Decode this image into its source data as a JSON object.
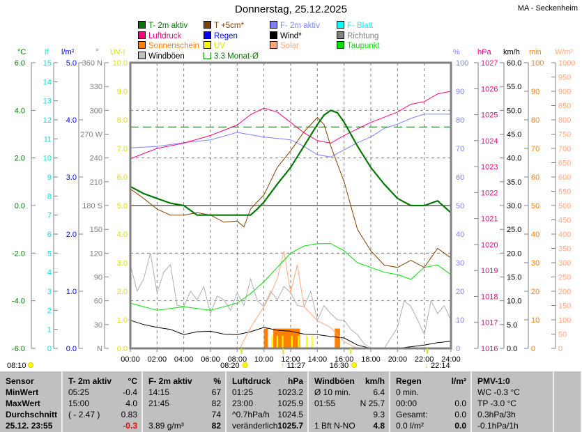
{
  "title": "Donnerstag, 25.12.2025",
  "station": "MA - Seckenheim",
  "legend": [
    {
      "label": "T- 2m aktiv",
      "color": "#007800"
    },
    {
      "label": "T +5cm*",
      "color": "#804000"
    },
    {
      "label": "F- 2m aktiv",
      "color": "#8080ff"
    },
    {
      "label": "F- Blatt",
      "color": "#00ffff"
    },
    {
      "label": "Luftdruck",
      "color": "#ff0080"
    },
    {
      "label": "Regen",
      "color": "#0000ff"
    },
    {
      "label": "Wind*",
      "color": "#000000"
    },
    {
      "label": "Richtung",
      "color": "#808080"
    },
    {
      "label": "Sonnenschein",
      "color": "#ff8000"
    },
    {
      "label": "UV",
      "color": "#ffff00"
    },
    {
      "label": "Solar",
      "color": "#ffa880"
    },
    {
      "label": "Taupunkt",
      "color": "#00e000"
    },
    {
      "label": "Windböen",
      "color": "#c0c0c0"
    },
    {
      "label": "3.3 Monat-Ø",
      "color": "#007800",
      "outline": true
    }
  ],
  "chart_data": {
    "type": "line",
    "title": "Donnerstag, 25.12.2025",
    "xlabel": "time",
    "x_ticks": [
      "00:00",
      "02:00",
      "04:00",
      "06:00",
      "08:00",
      "10:00",
      "12:00",
      "14:00",
      "16:00",
      "18:00",
      "20:00",
      "22:00",
      "24:00"
    ],
    "xlim": [
      0,
      24
    ],
    "grid": true,
    "axes": {
      "temp": {
        "unit": "°C",
        "range": [
          -6,
          6
        ],
        "ticks": [
          "6.0",
          "4.0",
          "2.0",
          "0.0",
          "-2.0",
          "-4.0",
          "-6.0"
        ],
        "color": "#008000"
      },
      "leaf": {
        "unit": "lf",
        "range": [
          0,
          15
        ],
        "ticks": [
          "15",
          "14",
          "13",
          "12",
          "11",
          "10",
          "9",
          "8",
          "7",
          "6",
          "5",
          "4",
          "3",
          "2",
          "1",
          "0"
        ],
        "color": "#00e0e0"
      },
      "rain": {
        "unit": "l/m²",
        "range": [
          0,
          5
        ],
        "ticks": [
          "5.0",
          "4.0",
          "3.0",
          "2.0",
          "1.0",
          "0.0"
        ],
        "color": "#0000ff"
      },
      "dir": {
        "unit": "°",
        "range": [
          0,
          360
        ],
        "ticks": [
          "360 N",
          "330",
          "300",
          "270 W",
          "240",
          "210",
          "180 S",
          "150",
          "120",
          "90",
          "60",
          "30",
          "N"
        ],
        "color": "#808080"
      },
      "uv": {
        "unit": "UV-I",
        "range": [
          0,
          10
        ],
        "ticks": [
          "10.0",
          "9.0",
          "8.0",
          "7.0",
          "6.0",
          "5.0",
          "4.0",
          "3.0",
          "2.0",
          "1.0",
          "0.0"
        ],
        "color": "#e0e000"
      },
      "hum": {
        "unit": "%",
        "range": [
          0,
          100
        ],
        "ticks": [
          "100",
          "90",
          "80",
          "70",
          "60",
          "50",
          "40",
          "30",
          "20",
          "10",
          "0"
        ],
        "color": "#8080ff"
      },
      "press": {
        "unit": "hPa",
        "range": [
          1016,
          1027
        ],
        "ticks": [
          "1027",
          "1026",
          "1025",
          "1024",
          "1023",
          "1022",
          "1021",
          "1020",
          "1019",
          "1018",
          "1017",
          "1016"
        ],
        "color": "#ff0080"
      },
      "wind": {
        "unit": "km/h",
        "range": [
          0,
          60
        ],
        "ticks": [
          "60.0",
          "55.0",
          "50.0",
          "45.0",
          "40.0",
          "35.0",
          "30.0",
          "25.0",
          "20.0",
          "15.0",
          "10.0",
          "5.0",
          "0.0"
        ],
        "color": "#000000"
      },
      "sun": {
        "unit": "min",
        "range": [
          0,
          100
        ],
        "ticks": [
          "100",
          "90",
          "80",
          "70",
          "60",
          "50",
          "40",
          "30",
          "20",
          "10",
          "0"
        ],
        "color": "#ff8000"
      },
      "solar": {
        "unit": "W/m²",
        "range": [
          0,
          1000
        ],
        "ticks": [
          "1000",
          "950",
          "900",
          "850",
          "800",
          "750",
          "700",
          "650",
          "600",
          "550",
          "500",
          "450",
          "400",
          "350",
          "300",
          "250",
          "200",
          "150",
          "100",
          "50",
          "0"
        ],
        "color": "#ffa880"
      }
    },
    "series": [
      {
        "name": "Windböen",
        "axis": "wind",
        "color": "#b0b0b0",
        "x": [
          0,
          0.5,
          1,
          1.5,
          2,
          2.5,
          3,
          3.5,
          4,
          4.5,
          5,
          5.5,
          6,
          6.5,
          7,
          7.5,
          8,
          8.5,
          9,
          9.5,
          10,
          10.5,
          11,
          11.5,
          12,
          12.5,
          13,
          13.5,
          14,
          14.5,
          15,
          15.5,
          16,
          16.5,
          17,
          17.5,
          18,
          19,
          20,
          20.5,
          21,
          21.5,
          22,
          22.5,
          23,
          23.5,
          24
        ],
        "y": [
          17.6,
          12,
          14.6,
          20,
          11.7,
          16,
          17.6,
          9,
          8.8,
          12,
          10.2,
          13,
          7.3,
          11,
          10.2,
          8,
          11.7,
          9,
          14.6,
          10,
          8.8,
          12,
          10.2,
          13,
          11.7,
          9,
          8.8,
          12,
          5.9,
          9,
          7.3,
          6,
          5.9,
          4,
          2.9,
          1,
          0,
          0,
          4.4,
          10,
          8.8,
          6,
          2.9,
          10,
          7.3,
          9,
          5.9
        ]
      },
      {
        "name": "Wind*",
        "axis": "wind",
        "color": "#000000",
        "x": [
          0,
          1,
          2,
          3,
          4,
          5,
          6,
          7,
          8,
          9,
          10,
          11,
          12,
          13,
          14,
          15,
          16,
          17,
          18,
          20,
          22,
          23,
          24
        ],
        "y": [
          5.9,
          5,
          4.4,
          4,
          2.9,
          3.5,
          3.6,
          3,
          2.9,
          3.5,
          4.4,
          3.8,
          3.6,
          3,
          2.9,
          2.5,
          2.2,
          0.7,
          0,
          0,
          0.7,
          1.2,
          1.5
        ]
      },
      {
        "name": "Solar",
        "axis": "solar",
        "color": "#ffa880",
        "x": [
          8.2,
          9,
          10,
          10.5,
          11,
          11.5,
          12,
          12.5,
          13,
          14,
          15,
          16,
          17
        ],
        "y": [
          0,
          73,
          146,
          190,
          244,
          340,
          195,
          293,
          146,
          97,
          73,
          24,
          0
        ]
      },
      {
        "name": "Taupunkt",
        "axis": "temp",
        "color": "#00e000",
        "x": [
          0,
          2,
          4,
          6,
          8,
          9,
          10,
          11,
          12,
          13,
          14,
          15,
          16,
          17,
          18,
          19,
          20,
          21,
          22,
          23,
          24
        ],
        "y": [
          -4.1,
          -4.4,
          -4.25,
          -4.4,
          -4.1,
          -3.7,
          -3.2,
          -2.6,
          -2.0,
          -1.7,
          -1.6,
          -1.6,
          -1.9,
          -2.4,
          -2.6,
          -2.8,
          -2.9,
          -3.1,
          -2.6,
          -2.5,
          -2.9
        ]
      },
      {
        "name": "F- 2m aktiv",
        "axis": "hum",
        "color": "#8080ff",
        "x": [
          0,
          2,
          4,
          6,
          8,
          10,
          12,
          13,
          14,
          15,
          16,
          17,
          18,
          19,
          20,
          21,
          22,
          24
        ],
        "y": [
          70.2,
          70.7,
          72,
          73,
          75.6,
          74,
          73,
          70.7,
          67.8,
          67,
          69.5,
          72,
          74,
          77,
          78.5,
          80.5,
          82,
          82
        ]
      },
      {
        "name": "Luftdruck",
        "axis": "press",
        "color": "#ff0080",
        "x": [
          0,
          2,
          4,
          6,
          8,
          9,
          10,
          11,
          12,
          13,
          14,
          15,
          16,
          17,
          18,
          20,
          21,
          22,
          23,
          24
        ],
        "y": [
          1023.3,
          1023.7,
          1023.9,
          1024.2,
          1024.6,
          1025.0,
          1025.25,
          1025.1,
          1024.7,
          1024.3,
          1024.0,
          1023.9,
          1024.2,
          1024.45,
          1024.7,
          1025.1,
          1025.4,
          1025.5,
          1025.8,
          1025.9
        ]
      },
      {
        "name": "T +5cm*",
        "axis": "temp",
        "color": "#804000",
        "x": [
          0,
          1,
          2,
          3,
          4,
          5,
          6,
          7,
          8,
          8.5,
          9,
          10,
          11,
          12,
          13,
          14,
          14.5,
          15,
          16,
          17,
          18,
          19,
          20,
          21,
          22,
          23,
          24
        ],
        "y": [
          0.7,
          0.3,
          -0.15,
          -0.4,
          -0.4,
          -0.3,
          -0.4,
          -0.7,
          -0.65,
          -0.9,
          -0.15,
          0.45,
          1.6,
          2.3,
          3.1,
          3.7,
          3.4,
          2.5,
          1.0,
          -1.0,
          -1.9,
          -2.5,
          -2.6,
          -2.3,
          -2.6,
          -1.8,
          -2.2
        ]
      },
      {
        "name": "T- 2m aktiv",
        "axis": "temp",
        "color": "#007800",
        "x": [
          0,
          1,
          2,
          3,
          4,
          5,
          6,
          7,
          8,
          9,
          9.5,
          10,
          11,
          12,
          13,
          14,
          14.5,
          15,
          15.5,
          16,
          17,
          18,
          19,
          20,
          21,
          22,
          23,
          24
        ],
        "y": [
          0.8,
          0.5,
          0.3,
          0.1,
          0,
          -0.4,
          -0.4,
          -0.4,
          -0.4,
          -0.4,
          -0.15,
          0.15,
          0.9,
          1.6,
          2.5,
          3.4,
          3.8,
          4.0,
          3.9,
          3.5,
          2.5,
          1.6,
          0.9,
          0.3,
          0,
          0,
          0.2,
          -0.3
        ]
      }
    ],
    "sunshine_bars_min": [
      {
        "from": 10.0,
        "to": 10.3,
        "value": 5
      },
      {
        "from": 10.7,
        "to": 12.7,
        "value": 5
      },
      {
        "from": 15.3,
        "to": 15.7,
        "value": 5
      }
    ],
    "reference_line": {
      "label": "3.3 Monat-Ø",
      "axis": "temp",
      "value": 3.3
    },
    "events": [
      {
        "label": "08:10",
        "hour": 8.17,
        "kind": "moonrise"
      },
      {
        "label": "08:20",
        "hour": 8.33,
        "kind": "sunrise"
      },
      {
        "label": "11:27",
        "hour": 11.45,
        "kind": "up"
      },
      {
        "label": "16:30",
        "hour": 16.5,
        "kind": "sunset"
      },
      {
        "label": "22:14",
        "hour": 22.23,
        "kind": "down"
      }
    ]
  },
  "table": {
    "sensor": {
      "rows": [
        "Sensor",
        "MinWert",
        "MaxWert",
        "Durchschnitt",
        "25.12. 23:55"
      ]
    },
    "t2m": {
      "head": "T- 2m aktiv",
      "unit": "°C",
      "rows": [
        [
          "05:25",
          "-0.4"
        ],
        [
          "15:00",
          "4.0"
        ],
        [
          "( - 2.47 )",
          "0.83"
        ],
        [
          "",
          "-0.3"
        ]
      ]
    },
    "f2m": {
      "head": "F- 2m aktiv",
      "unit": "%",
      "rows": [
        [
          "14:15",
          "67"
        ],
        [
          "21:45",
          "82"
        ],
        [
          "",
          "74"
        ],
        [
          "3.89 g/m³",
          "82"
        ]
      ]
    },
    "press": {
      "head": "Luftdruck",
      "unit": "hPa",
      "rows": [
        [
          "01:25",
          "1023.2"
        ],
        [
          "23:00",
          "1025.9"
        ],
        [
          "^0.7hPa/h",
          "1024.5"
        ],
        [
          "veränderlich",
          "1025.7"
        ]
      ]
    },
    "wind": {
      "head": "Windböen",
      "unit": "km/h",
      "rows": [
        [
          "Ø 10 min.",
          "6.4"
        ],
        [
          "01:55",
          "N 25.7"
        ],
        [
          "",
          "9.3"
        ],
        [
          "1 Bft N-NO",
          "4.8"
        ]
      ]
    },
    "rain": {
      "head": "Regen",
      "unit": "l/m²",
      "rows": [
        [
          "0 min.",
          ""
        ],
        [
          "00:00",
          "0.0"
        ],
        [
          "Gesamt:",
          "0.0"
        ],
        [
          "0.0 l/m²",
          "0.0"
        ]
      ]
    },
    "pmv": {
      "head": "PMV-1:0",
      "rows": [
        "WC -0.3 °C",
        "TP -3.0 °C",
        "0.3hPa/3h",
        "-0.1hPa/1h"
      ]
    }
  }
}
